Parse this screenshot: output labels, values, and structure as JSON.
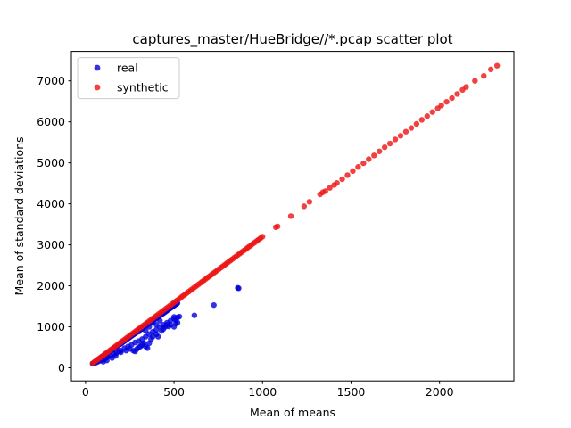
{
  "chart_data": {
    "type": "scatter",
    "title": "captures_master/HueBridge//*.pcap scatter plot",
    "xlabel": "Mean of means",
    "ylabel": "Mean of standard deviations",
    "xlim": [
      -80,
      2420
    ],
    "ylim": [
      -320,
      7720
    ],
    "xticks": [
      0,
      500,
      1000,
      1500,
      2000
    ],
    "yticks": [
      0,
      1000,
      2000,
      3000,
      4000,
      5000,
      6000,
      7000
    ],
    "grid": false,
    "legend_position": "top-left",
    "series": [
      {
        "name": "real",
        "color": "#0000dd",
        "trend": {
          "x": [
            40,
            520
          ],
          "y": [
            100,
            1580
          ]
        },
        "points": [
          [
            45,
            100
          ],
          [
            55,
            120
          ],
          [
            65,
            140
          ],
          [
            75,
            160
          ],
          [
            85,
            185
          ],
          [
            95,
            200
          ],
          [
            105,
            210
          ],
          [
            115,
            240
          ],
          [
            125,
            260
          ],
          [
            140,
            300
          ],
          [
            160,
            340
          ],
          [
            175,
            360
          ],
          [
            190,
            400
          ],
          [
            200,
            420
          ],
          [
            220,
            480
          ],
          [
            240,
            520
          ],
          [
            260,
            560
          ],
          [
            280,
            620
          ],
          [
            300,
            650
          ],
          [
            320,
            700
          ],
          [
            340,
            760
          ],
          [
            360,
            820
          ],
          [
            380,
            880
          ],
          [
            400,
            930
          ],
          [
            420,
            1000
          ],
          [
            440,
            1050
          ],
          [
            460,
            1100
          ],
          [
            480,
            1150
          ],
          [
            500,
            1200
          ],
          [
            520,
            1230
          ],
          [
            100,
            150
          ],
          [
            120,
            180
          ],
          [
            150,
            240
          ],
          [
            170,
            290
          ],
          [
            200,
            380
          ],
          [
            230,
            420
          ],
          [
            250,
            460
          ],
          [
            270,
            420
          ],
          [
            280,
            400
          ],
          [
            290,
            460
          ],
          [
            300,
            500
          ],
          [
            310,
            520
          ],
          [
            320,
            560
          ],
          [
            330,
            600
          ],
          [
            340,
            520
          ],
          [
            350,
            480
          ],
          [
            360,
            600
          ],
          [
            370,
            700
          ],
          [
            380,
            760
          ],
          [
            400,
            820
          ],
          [
            410,
            760
          ],
          [
            430,
            900
          ],
          [
            440,
            950
          ],
          [
            450,
            1000
          ],
          [
            460,
            1050
          ],
          [
            480,
            1050
          ],
          [
            500,
            1000
          ],
          [
            510,
            1080
          ],
          [
            520,
            1100
          ],
          [
            530,
            1250
          ],
          [
            300,
            880
          ],
          [
            320,
            950
          ],
          [
            340,
            900
          ],
          [
            360,
            1000
          ],
          [
            380,
            1100
          ],
          [
            400,
            1050
          ],
          [
            420,
            1150
          ],
          [
            500,
            1240
          ],
          [
            510,
            1160
          ],
          [
            470,
            1010
          ],
          [
            615,
            1280
          ],
          [
            725,
            1530
          ],
          [
            860,
            1950
          ],
          [
            865,
            1940
          ]
        ]
      },
      {
        "name": "synthetic",
        "color": "#ee1111",
        "trend": {
          "x": [
            40,
            1000
          ],
          "y": [
            110,
            3200
          ]
        },
        "points": [
          [
            1075,
            3430
          ],
          [
            1085,
            3450
          ],
          [
            1160,
            3700
          ],
          [
            1235,
            3940
          ],
          [
            1265,
            4050
          ],
          [
            1325,
            4230
          ],
          [
            1340,
            4280
          ],
          [
            1355,
            4310
          ],
          [
            1380,
            4390
          ],
          [
            1405,
            4460
          ],
          [
            1420,
            4510
          ],
          [
            1450,
            4600
          ],
          [
            1480,
            4700
          ],
          [
            1510,
            4800
          ],
          [
            1540,
            4900
          ],
          [
            1570,
            4990
          ],
          [
            1600,
            5090
          ],
          [
            1630,
            5180
          ],
          [
            1660,
            5280
          ],
          [
            1690,
            5380
          ],
          [
            1720,
            5470
          ],
          [
            1750,
            5570
          ],
          [
            1780,
            5660
          ],
          [
            1810,
            5760
          ],
          [
            1840,
            5850
          ],
          [
            1870,
            5950
          ],
          [
            1900,
            6050
          ],
          [
            1930,
            6140
          ],
          [
            1960,
            6240
          ],
          [
            1990,
            6330
          ],
          [
            2010,
            6400
          ],
          [
            2040,
            6490
          ],
          [
            2070,
            6580
          ],
          [
            2100,
            6680
          ],
          [
            2130,
            6780
          ],
          [
            2150,
            6850
          ],
          [
            2200,
            7000
          ],
          [
            2250,
            7120
          ],
          [
            2290,
            7280
          ],
          [
            2325,
            7370
          ]
        ]
      }
    ]
  }
}
